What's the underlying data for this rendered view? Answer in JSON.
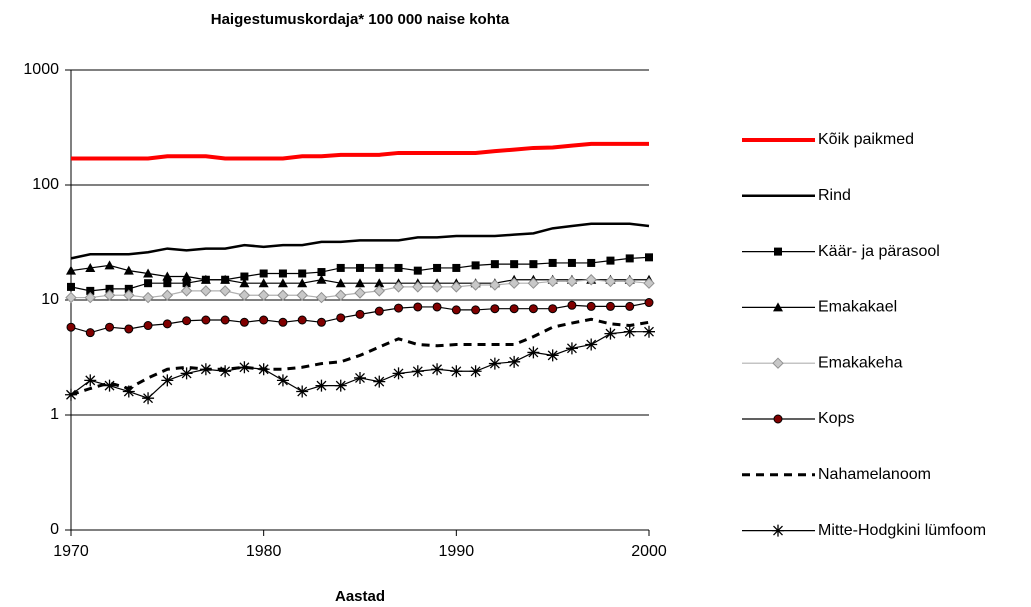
{
  "chart_data": {
    "type": "line",
    "title": "Haigestumuskordaja* 100 000 naise kohta",
    "x_label": "Aastad",
    "x": [
      1970,
      1971,
      1972,
      1973,
      1974,
      1975,
      1976,
      1977,
      1978,
      1979,
      1980,
      1981,
      1982,
      1983,
      1984,
      1985,
      1986,
      1987,
      1988,
      1989,
      1990,
      1991,
      1992,
      1993,
      1994,
      1995,
      1996,
      1997,
      1998,
      1999,
      2000
    ],
    "xlim": [
      1970,
      2000
    ],
    "xticks": [
      1970,
      1980,
      1990,
      2000
    ],
    "ylim": [
      0.1,
      1000
    ],
    "yticks": [
      {
        "value": 0.1,
        "label": "0"
      },
      1,
      10,
      100,
      1000
    ],
    "log_y": true,
    "grid": true,
    "legend": "right",
    "series": [
      {
        "name": "Kõik paikmed",
        "color": "#ff0000",
        "marker": "none",
        "dashed": false,
        "values": [
          170,
          170,
          170,
          170,
          170,
          178,
          178,
          178,
          170,
          170,
          170,
          170,
          178,
          178,
          183,
          183,
          183,
          190,
          190,
          190,
          190,
          190,
          197,
          203,
          210,
          212,
          220,
          228,
          228,
          228,
          228
        ]
      },
      {
        "name": "Rind",
        "color": "#000000",
        "marker": "none",
        "dashed": false,
        "values": [
          23,
          25,
          25,
          25,
          26,
          28,
          27,
          28,
          28,
          30,
          29,
          30,
          30,
          32,
          32,
          33,
          33,
          33,
          35,
          35,
          36,
          36,
          36,
          37,
          38,
          42,
          44,
          46,
          46,
          46,
          44
        ]
      },
      {
        "name": "Käär- ja pärasool",
        "color": "#000000",
        "marker": "square",
        "dashed": false,
        "values": [
          13,
          12,
          12.5,
          12.5,
          14,
          14,
          14,
          15,
          15,
          16,
          17,
          17,
          17,
          17.5,
          19,
          19,
          19,
          19,
          18,
          19,
          19,
          20,
          20.5,
          20.5,
          20.5,
          21,
          21,
          21,
          22,
          23,
          23.5
        ]
      },
      {
        "name": "Emakakael",
        "color": "#000000",
        "marker": "triangle",
        "dashed": false,
        "values": [
          18,
          19,
          20,
          18,
          17,
          16,
          16,
          15,
          15,
          14,
          14,
          14,
          14,
          15,
          14,
          14,
          14,
          14,
          14,
          14,
          14,
          14,
          14,
          15,
          15,
          15,
          15,
          15,
          15,
          15,
          15
        ]
      },
      {
        "name": "Emakakeha",
        "color": "#b0b0b0",
        "marker": "diamond",
        "dashed": false,
        "values": [
          10.5,
          10.5,
          11,
          11,
          10.5,
          11,
          12,
          12,
          12,
          11,
          11,
          11,
          11,
          10.5,
          11,
          11.5,
          12,
          13,
          13,
          13,
          13,
          13.5,
          13.5,
          14,
          14,
          14.5,
          14.5,
          15,
          14.5,
          14.5,
          14
        ]
      },
      {
        "name": "Kops",
        "color": "#000000",
        "marker": "circle",
        "dashed": false,
        "values": [
          5.8,
          5.2,
          5.8,
          5.6,
          6,
          6.2,
          6.6,
          6.7,
          6.7,
          6.4,
          6.7,
          6.4,
          6.7,
          6.4,
          7,
          7.5,
          8,
          8.5,
          8.7,
          8.7,
          8.2,
          8.2,
          8.4,
          8.4,
          8.4,
          8.4,
          9,
          8.8,
          8.8,
          8.8,
          9.5
        ]
      },
      {
        "name": "Nahamelanoom",
        "color": "#000000",
        "marker": "none",
        "dashed": true,
        "values": [
          1.5,
          1.7,
          1.9,
          1.7,
          2.1,
          2.5,
          2.6,
          2.5,
          2.5,
          2.6,
          2.5,
          2.5,
          2.6,
          2.8,
          2.9,
          3.3,
          3.9,
          4.6,
          4.1,
          4,
          4.1,
          4.1,
          4.1,
          4.1,
          4.8,
          5.8,
          6.3,
          6.8,
          6.2,
          6,
          6.4
        ]
      },
      {
        "name": "Mitte-Hodgkini lümfoom",
        "color": "#000000",
        "marker": "star",
        "dashed": false,
        "values": [
          1.5,
          2,
          1.8,
          1.6,
          1.4,
          2,
          2.3,
          2.5,
          2.4,
          2.6,
          2.5,
          2,
          1.6,
          1.8,
          1.8,
          2.1,
          1.95,
          2.3,
          2.4,
          2.5,
          2.4,
          2.4,
          2.8,
          2.9,
          3.5,
          3.3,
          3.8,
          4.1,
          5.1,
          5.3,
          5.3
        ]
      }
    ]
  }
}
